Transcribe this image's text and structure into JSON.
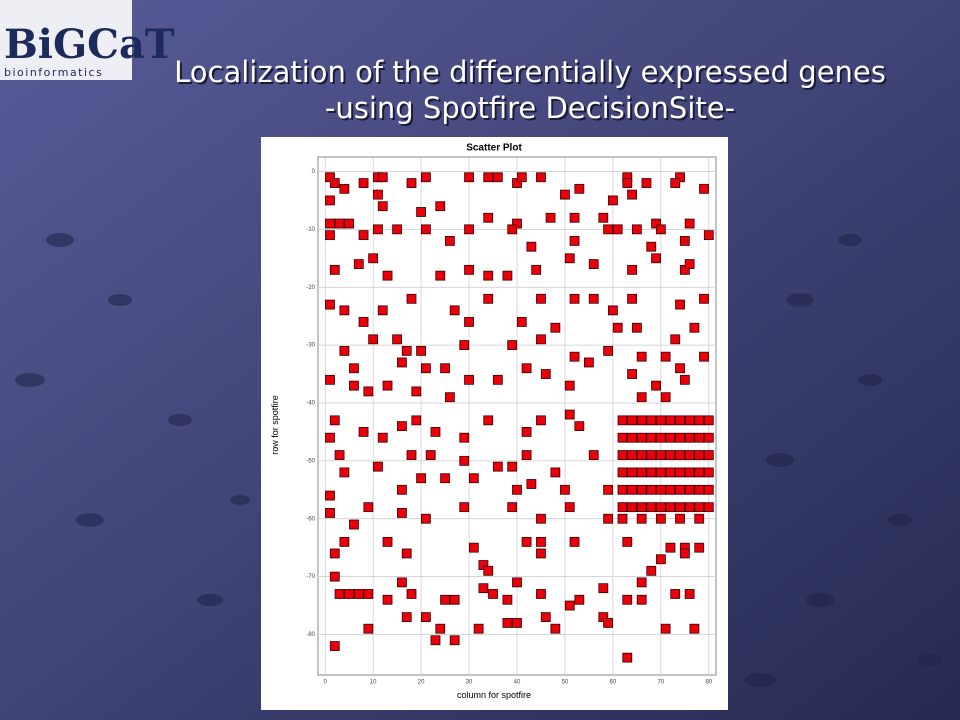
{
  "slide": {
    "logo": "BiGCaT",
    "logo_tagline": "bioinformatics",
    "title_line1": "Localization of the differentially expressed genes",
    "title_line2": "-using Spotfire DecisionSite-"
  },
  "chart_data": {
    "type": "scatter",
    "title": "Scatter Plot",
    "x_label": "column for spotfire",
    "y_label": "row for spotfire",
    "color": "#e8000b",
    "marker": "square",
    "grid": true,
    "xlim": [
      -1.5,
      81.5
    ],
    "ylim": [
      -87,
      2.5
    ],
    "xticks": [
      0,
      10,
      20,
      30,
      40,
      50,
      60,
      70,
      80
    ],
    "yticks": [
      0,
      -10,
      -20,
      -30,
      -40,
      -50,
      -60,
      -70,
      -80
    ],
    "x": [
      1,
      2,
      4,
      8,
      11,
      12,
      11,
      18,
      21,
      24,
      20,
      30,
      34,
      36,
      40,
      41,
      45,
      50,
      53,
      60,
      63,
      63,
      67,
      64,
      74,
      73,
      79,
      1,
      1,
      3,
      5,
      12,
      34,
      40,
      47,
      52,
      58,
      61,
      69,
      76,
      1,
      8,
      11,
      15,
      21,
      26,
      30,
      39,
      43,
      52,
      59,
      65,
      70,
      80,
      75,
      68,
      2,
      7,
      10,
      13,
      24,
      30,
      34,
      38,
      44,
      51,
      56,
      64,
      69,
      75,
      76,
      1,
      4,
      12,
      18,
      27,
      30,
      34,
      45,
      52,
      56,
      60,
      64,
      61,
      65,
      74,
      79,
      77,
      8,
      48,
      41,
      73,
      4,
      10,
      15,
      17,
      20,
      29,
      39,
      45,
      52,
      59,
      66,
      71,
      79,
      1,
      6,
      6,
      9,
      13,
      16,
      21,
      25,
      30,
      36,
      42,
      46,
      51,
      55,
      64,
      69,
      74,
      75,
      66,
      71,
      26,
      19,
      2,
      1,
      8,
      12,
      16,
      19,
      23,
      29,
      34,
      42,
      45,
      51,
      53,
      3,
      11,
      18,
      22,
      29,
      36,
      39,
      42,
      48,
      56,
      4,
      1,
      9,
      16,
      20,
      25,
      31,
      40,
      43,
      50,
      59,
      1,
      6,
      16,
      21,
      29,
      39,
      45,
      51,
      59,
      62,
      64,
      66,
      68,
      70,
      72,
      74,
      76,
      78,
      80,
      62,
      64,
      66,
      68,
      70,
      72,
      74,
      76,
      78,
      80,
      62,
      64,
      66,
      68,
      70,
      72,
      74,
      76,
      78,
      80,
      62,
      64,
      66,
      68,
      70,
      72,
      74,
      76,
      78,
      80,
      62,
      64,
      66,
      68,
      70,
      72,
      74,
      76,
      78,
      80,
      62,
      64,
      66,
      68,
      70,
      72,
      74,
      76,
      78,
      80,
      62,
      66,
      70,
      74,
      78,
      2,
      4,
      2,
      3,
      5,
      7,
      9,
      9,
      2,
      13,
      17,
      16,
      18,
      13,
      17,
      21,
      24,
      23,
      25,
      27,
      27,
      31,
      33,
      34,
      33,
      35,
      32,
      38,
      40,
      38,
      40,
      42,
      45,
      45,
      45,
      46,
      48,
      52,
      51,
      53,
      58,
      58,
      59,
      63,
      63,
      66,
      66,
      68,
      63,
      70,
      72,
      75,
      78,
      71,
      73,
      76,
      77,
      75
    ],
    "values": [
      -1,
      -2,
      -3,
      -2,
      -1,
      -1,
      -4,
      -2,
      -1,
      -6,
      -7,
      -1,
      -1,
      -1,
      -2,
      -1,
      -1,
      -4,
      -3,
      -5,
      -1,
      -2,
      -2,
      -4,
      -1,
      -2,
      -3,
      -5,
      -9,
      -9,
      -9,
      -6,
      -8,
      -9,
      -8,
      -8,
      -8,
      -10,
      -9,
      -9,
      -11,
      -11,
      -10,
      -10,
      -10,
      -12,
      -10,
      -10,
      -13,
      -12,
      -10,
      -10,
      -10,
      -11,
      -12,
      -13,
      -17,
      -16,
      -15,
      -18,
      -18,
      -17,
      -18,
      -18,
      -17,
      -15,
      -16,
      -17,
      -15,
      -17,
      -16,
      -23,
      -24,
      -24,
      -22,
      -24,
      -26,
      -22,
      -22,
      -22,
      -22,
      -24,
      -22,
      -27,
      -27,
      -23,
      -22,
      -27,
      -26,
      -27,
      -26,
      -29,
      -31,
      -29,
      -29,
      -31,
      -31,
      -30,
      -30,
      -29,
      -32,
      -31,
      -32,
      -32,
      -32,
      -36,
      -34,
      -37,
      -38,
      -37,
      -33,
      -34,
      -34,
      -36,
      -36,
      -34,
      -35,
      -37,
      -33,
      -35,
      -37,
      -34,
      -36,
      -39,
      -39,
      -39,
      -38,
      -43,
      -46,
      -45,
      -46,
      -44,
      -43,
      -45,
      -46,
      -43,
      -45,
      -43,
      -42,
      -44,
      -49,
      -51,
      -49,
      -49,
      -50,
      -51,
      -51,
      -49,
      -52,
      -49,
      -52,
      -56,
      -58,
      -55,
      -53,
      -53,
      -53,
      -55,
      -54,
      -55,
      -55,
      -59,
      -61,
      -59,
      -60,
      -58,
      -58,
      -60,
      -58,
      -60,
      -43,
      -43,
      -43,
      -43,
      -43,
      -43,
      -43,
      -43,
      -43,
      -43,
      -46,
      -46,
      -46,
      -46,
      -46,
      -46,
      -46,
      -46,
      -46,
      -46,
      -49,
      -49,
      -49,
      -49,
      -49,
      -49,
      -49,
      -49,
      -49,
      -49,
      -52,
      -52,
      -52,
      -52,
      -52,
      -52,
      -52,
      -52,
      -52,
      -52,
      -55,
      -55,
      -55,
      -55,
      -55,
      -55,
      -55,
      -55,
      -55,
      -55,
      -58,
      -58,
      -58,
      -58,
      -58,
      -58,
      -58,
      -58,
      -58,
      -58,
      -60,
      -60,
      -60,
      -60,
      -60,
      -66,
      -64,
      -70,
      -73,
      -73,
      -73,
      -73,
      -79,
      -82,
      -64,
      -66,
      -71,
      -73,
      -74,
      -77,
      -77,
      -79,
      -81,
      -74,
      -74,
      -81,
      -65,
      -68,
      -69,
      -72,
      -73,
      -79,
      -74,
      -71,
      -78,
      -78,
      -64,
      -64,
      -66,
      -73,
      -77,
      -79,
      -64,
      -75,
      -74,
      -72,
      -77,
      -78,
      -64,
      -74,
      -71,
      -74,
      -69,
      -84,
      -67,
      -65,
      -65,
      -65,
      -79,
      -73,
      -73,
      -79,
      -66
    ]
  }
}
